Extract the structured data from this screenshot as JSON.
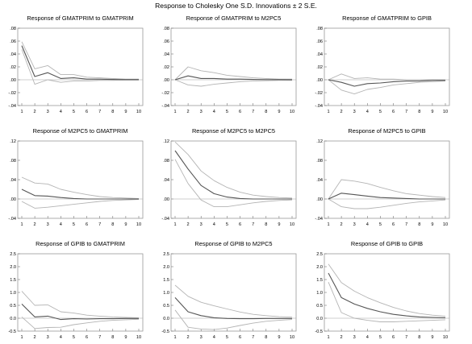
{
  "title": "Response to Cholesky One S.D. Innovations ± 2 S.E.",
  "chart_data": [
    {
      "type": "line",
      "title": "Response of GMATPRIM to GMATPRIM",
      "x": [
        1,
        2,
        3,
        4,
        5,
        6,
        7,
        8,
        9,
        10
      ],
      "ylim": [
        -0.04,
        0.08
      ],
      "yticks": [
        ".08",
        ".06",
        ".04",
        ".02",
        ".00",
        "-.02",
        "-.04"
      ],
      "ytick_values": [
        0.08,
        0.06,
        0.04,
        0.02,
        0.0,
        -0.02,
        -0.04
      ],
      "series": [
        {
          "role": "response",
          "values": [
            0.053,
            0.005,
            0.011,
            0.002,
            0.003,
            0.001,
            0.001,
            0.0005,
            0.0003,
            0.0002
          ]
        },
        {
          "role": "upper",
          "values": [
            0.059,
            0.017,
            0.022,
            0.008,
            0.008,
            0.004,
            0.003,
            0.002,
            0.001,
            0.001
          ]
        },
        {
          "role": "lower",
          "values": [
            0.047,
            -0.007,
            0.0,
            -0.004,
            -0.002,
            -0.002,
            -0.001,
            -0.001,
            -0.0005,
            -0.0005
          ]
        }
      ]
    },
    {
      "type": "line",
      "title": "Response of GMATPRIM to M2PC5",
      "x": [
        1,
        2,
        3,
        4,
        5,
        6,
        7,
        8,
        9,
        10
      ],
      "ylim": [
        -0.04,
        0.08
      ],
      "yticks": [
        ".08",
        ".06",
        ".04",
        ".02",
        ".00",
        "-.02",
        "-.04"
      ],
      "ytick_values": [
        0.08,
        0.06,
        0.04,
        0.02,
        0.0,
        -0.02,
        -0.04
      ],
      "series": [
        {
          "role": "response",
          "values": [
            0.0,
            0.006,
            0.002,
            0.002,
            0.001,
            0.001,
            0.0005,
            0.0003,
            0.0002,
            0.0001
          ]
        },
        {
          "role": "upper",
          "values": [
            0.0,
            0.02,
            0.014,
            0.011,
            0.007,
            0.005,
            0.003,
            0.002,
            0.001,
            0.001
          ]
        },
        {
          "role": "lower",
          "values": [
            0.0,
            -0.008,
            -0.01,
            -0.007,
            -0.005,
            -0.003,
            -0.002,
            -0.0015,
            -0.001,
            -0.001
          ]
        }
      ]
    },
    {
      "type": "line",
      "title": "Response of GMATPRIM to GPIB",
      "x": [
        1,
        2,
        3,
        4,
        5,
        6,
        7,
        8,
        9,
        10
      ],
      "ylim": [
        -0.04,
        0.08
      ],
      "yticks": [
        ".08",
        ".06",
        ".04",
        ".02",
        ".00",
        "-.02",
        "-.04"
      ],
      "ytick_values": [
        0.08,
        0.06,
        0.04,
        0.02,
        0.0,
        -0.02,
        -0.04
      ],
      "series": [
        {
          "role": "response",
          "values": [
            0.0,
            -0.004,
            -0.01,
            -0.006,
            -0.005,
            -0.003,
            -0.002,
            -0.002,
            -0.001,
            -0.001
          ]
        },
        {
          "role": "upper",
          "values": [
            0.0,
            0.009,
            0.002,
            0.003,
            0.001,
            0.001,
            0.0,
            0.0,
            0.0,
            0.0
          ]
        },
        {
          "role": "lower",
          "values": [
            0.0,
            -0.016,
            -0.022,
            -0.015,
            -0.012,
            -0.008,
            -0.006,
            -0.004,
            -0.003,
            -0.002
          ]
        }
      ]
    },
    {
      "type": "line",
      "title": "Response of M2PC5 to GMATPRIM",
      "x": [
        1,
        2,
        3,
        4,
        5,
        6,
        7,
        8,
        9,
        10
      ],
      "ylim": [
        -0.04,
        0.12
      ],
      "yticks": [
        ".12",
        ".08",
        ".04",
        ".00",
        "-.04"
      ],
      "ytick_values": [
        0.12,
        0.08,
        0.04,
        0.0,
        -0.04
      ],
      "series": [
        {
          "role": "response",
          "values": [
            0.02,
            0.007,
            0.006,
            0.003,
            0.001,
            0.0,
            0.0,
            0.0,
            0.0,
            0.0
          ]
        },
        {
          "role": "upper",
          "values": [
            0.045,
            0.033,
            0.031,
            0.02,
            0.014,
            0.009,
            0.005,
            0.003,
            0.002,
            0.001
          ]
        },
        {
          "role": "lower",
          "values": [
            -0.005,
            -0.019,
            -0.017,
            -0.014,
            -0.011,
            -0.008,
            -0.005,
            -0.003,
            -0.002,
            -0.001
          ]
        }
      ]
    },
    {
      "type": "line",
      "title": "Response of M2PC5 to M2PC5",
      "x": [
        1,
        2,
        3,
        4,
        5,
        6,
        7,
        8,
        9,
        10
      ],
      "ylim": [
        -0.04,
        0.12
      ],
      "yticks": [
        ".12",
        ".08",
        ".04",
        ".00",
        "-.04"
      ],
      "ytick_values": [
        0.12,
        0.08,
        0.04,
        0.0,
        -0.04
      ],
      "series": [
        {
          "role": "response",
          "values": [
            0.1,
            0.062,
            0.028,
            0.011,
            0.004,
            0.001,
            0.0,
            0.0,
            0.0,
            0.0
          ]
        },
        {
          "role": "upper",
          "values": [
            0.118,
            0.092,
            0.058,
            0.038,
            0.024,
            0.014,
            0.008,
            0.005,
            0.003,
            0.002
          ]
        },
        {
          "role": "lower",
          "values": [
            0.082,
            0.032,
            -0.002,
            -0.016,
            -0.016,
            -0.012,
            -0.008,
            -0.005,
            -0.003,
            -0.002
          ]
        }
      ]
    },
    {
      "type": "line",
      "title": "Response of M2PC5 to GPIB",
      "x": [
        1,
        2,
        3,
        4,
        5,
        6,
        7,
        8,
        9,
        10
      ],
      "ylim": [
        -0.04,
        0.12
      ],
      "yticks": [
        ".12",
        ".08",
        ".04",
        ".00",
        "-.04"
      ],
      "ytick_values": [
        0.12,
        0.08,
        0.04,
        0.0,
        -0.04
      ],
      "series": [
        {
          "role": "response",
          "values": [
            0.0,
            0.012,
            0.009,
            0.006,
            0.003,
            0.002,
            0.001,
            0.0,
            0.0,
            0.0
          ]
        },
        {
          "role": "upper",
          "values": [
            0.0,
            0.04,
            0.037,
            0.032,
            0.024,
            0.017,
            0.011,
            0.008,
            0.005,
            0.003
          ]
        },
        {
          "role": "lower",
          "values": [
            0.0,
            -0.016,
            -0.02,
            -0.02,
            -0.017,
            -0.013,
            -0.009,
            -0.006,
            -0.004,
            -0.002
          ]
        }
      ]
    },
    {
      "type": "line",
      "title": "Response of GPIB to GMATPRIM",
      "x": [
        1,
        2,
        3,
        4,
        5,
        6,
        7,
        8,
        9,
        10
      ],
      "ylim": [
        -0.5,
        2.5
      ],
      "yticks": [
        "2.5",
        "2.0",
        "1.5",
        "1.0",
        "0.5",
        "0.0",
        "-0.5"
      ],
      "ytick_values": [
        2.5,
        2.0,
        1.5,
        1.0,
        0.5,
        0.0,
        -0.5
      ],
      "series": [
        {
          "role": "response",
          "values": [
            0.55,
            0.05,
            0.08,
            -0.05,
            -0.02,
            -0.03,
            -0.02,
            -0.02,
            -0.01,
            -0.01
          ]
        },
        {
          "role": "upper",
          "values": [
            1.05,
            0.5,
            0.52,
            0.25,
            0.2,
            0.12,
            0.08,
            0.05,
            0.03,
            0.02
          ]
        },
        {
          "role": "lower",
          "values": [
            0.05,
            -0.4,
            -0.36,
            -0.35,
            -0.25,
            -0.18,
            -0.12,
            -0.08,
            -0.06,
            -0.04
          ]
        }
      ]
    },
    {
      "type": "line",
      "title": "Response of GPIB to M2PC5",
      "x": [
        1,
        2,
        3,
        4,
        5,
        6,
        7,
        8,
        9,
        10
      ],
      "ylim": [
        -0.5,
        2.5
      ],
      "yticks": [
        "2.5",
        "2.0",
        "1.5",
        "1.0",
        "0.5",
        "0.0",
        "-0.5"
      ],
      "ytick_values": [
        2.5,
        2.0,
        1.5,
        1.0,
        0.5,
        0.0,
        -0.5
      ],
      "series": [
        {
          "role": "response",
          "values": [
            0.8,
            0.25,
            0.1,
            0.02,
            -0.01,
            -0.02,
            -0.02,
            -0.01,
            -0.01,
            -0.01
          ]
        },
        {
          "role": "upper",
          "values": [
            1.28,
            0.85,
            0.62,
            0.48,
            0.36,
            0.24,
            0.15,
            0.1,
            0.06,
            0.04
          ]
        },
        {
          "role": "lower",
          "values": [
            0.32,
            -0.35,
            -0.42,
            -0.44,
            -0.38,
            -0.28,
            -0.19,
            -0.12,
            -0.08,
            -0.05
          ]
        }
      ]
    },
    {
      "type": "line",
      "title": "Response of GPIB to GPIB",
      "x": [
        1,
        2,
        3,
        4,
        5,
        6,
        7,
        8,
        9,
        10
      ],
      "ylim": [
        -0.5,
        2.5
      ],
      "yticks": [
        "2.5",
        "2.0",
        "1.5",
        "1.0",
        "0.5",
        "0.0",
        "-0.5"
      ],
      "ytick_values": [
        2.5,
        2.0,
        1.5,
        1.0,
        0.5,
        0.0,
        -0.5
      ],
      "series": [
        {
          "role": "response",
          "values": [
            1.75,
            0.8,
            0.55,
            0.38,
            0.25,
            0.15,
            0.09,
            0.05,
            0.03,
            0.02
          ]
        },
        {
          "role": "upper",
          "values": [
            2.1,
            1.38,
            1.05,
            0.8,
            0.6,
            0.42,
            0.28,
            0.18,
            0.12,
            0.08
          ]
        },
        {
          "role": "lower",
          "values": [
            1.4,
            0.22,
            0.0,
            -0.08,
            -0.14,
            -0.14,
            -0.12,
            -0.1,
            -0.08,
            -0.06
          ]
        }
      ]
    }
  ]
}
